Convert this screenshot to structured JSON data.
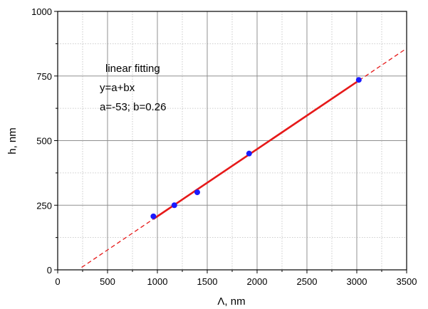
{
  "chart_data": {
    "type": "scatter",
    "xlabel": "Λ, nm",
    "ylabel": "h, nm",
    "xlim": [
      0,
      3500
    ],
    "ylim": [
      0,
      1000
    ],
    "xticks": [
      0,
      500,
      1000,
      1500,
      2000,
      2500,
      3000,
      3500
    ],
    "yticks": [
      0,
      250,
      500,
      750,
      1000
    ],
    "grid": true,
    "points": {
      "color": "#1a1aff",
      "x": [
        960,
        1170,
        1400,
        1920,
        3020
      ],
      "y": [
        207,
        250,
        300,
        450,
        735
      ]
    },
    "fit": {
      "color": "#e61919",
      "a": -53,
      "b": 0.26,
      "solid_range": [
        960,
        3020
      ],
      "dashed_range": [
        240,
        3500
      ]
    },
    "annotations": [
      "linear fitting",
      "y=a+bx",
      "a=-53; b=0.26"
    ]
  }
}
